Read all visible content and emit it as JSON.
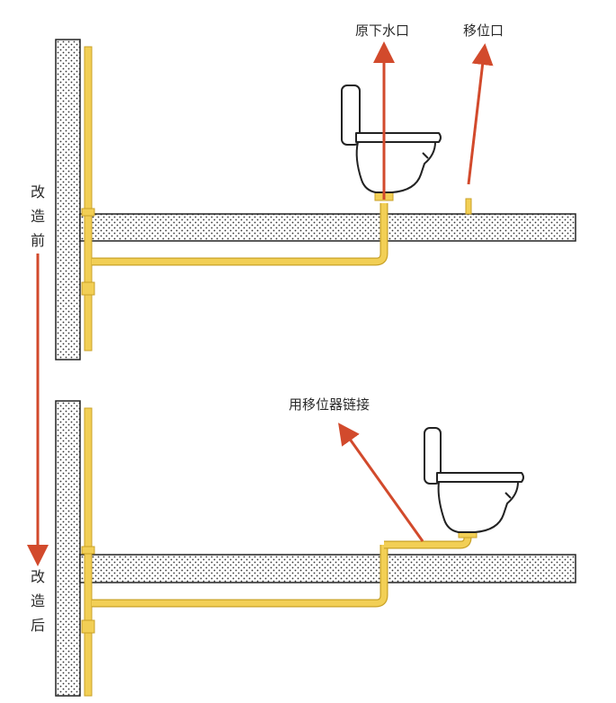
{
  "labels": {
    "original_drain": "原下水口",
    "relocated_outlet": "移位口",
    "shifter_connection": "用移位器链接"
  },
  "side_labels": {
    "before": [
      "改",
      "造",
      "前"
    ],
    "after": [
      "改",
      "造",
      "后"
    ]
  },
  "colors": {
    "pipe_fill": "#f2cf55",
    "pipe_stroke": "#c9a227",
    "arrow": "#d24a2c",
    "slab_fill": "#ffffff",
    "slab_stroke": "#222222",
    "dots": "#333333",
    "toilet_stroke": "#222222"
  }
}
